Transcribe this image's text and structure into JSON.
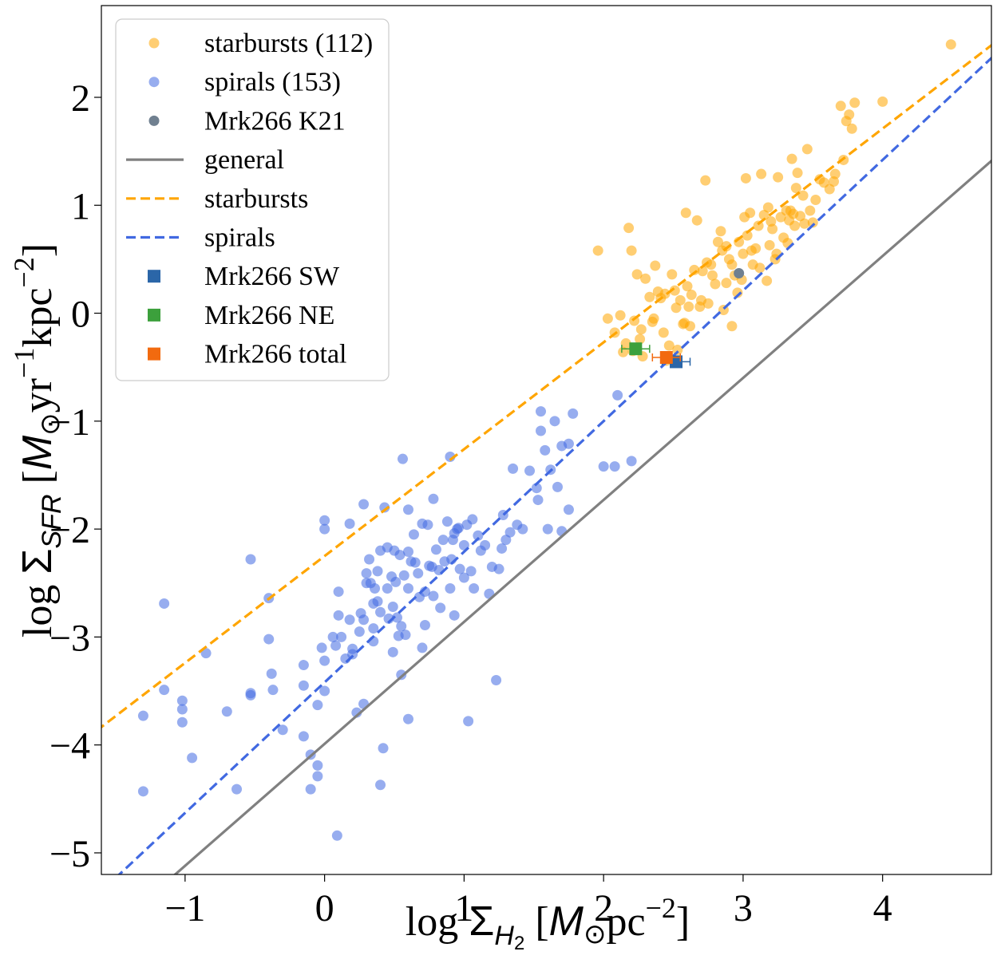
{
  "chart_data": {
    "type": "scatter",
    "xlim": [
      -1.6,
      4.78
    ],
    "ylim": [
      -5.2,
      2.85
    ],
    "xticks": [
      -1,
      0,
      1,
      2,
      3,
      4
    ],
    "yticks": [
      -5,
      -4,
      -3,
      -2,
      -1,
      0,
      1,
      2
    ],
    "xtick_labels": [
      "−1",
      "0",
      "1",
      "2",
      "3",
      "4"
    ],
    "ytick_labels": [
      "−5",
      "−4",
      "−3",
      "−2",
      "−1",
      "0",
      "1",
      "2"
    ],
    "xlabel": {
      "prefix": "log ",
      "sigma": "Σ",
      "sub": "H",
      "subsub": "2",
      "unit_open": " [",
      "msun": "M",
      "odot": "⊙",
      "unit": "pc",
      "exp": "−2",
      "close": "]"
    },
    "ylabel": {
      "prefix": "log ",
      "sigma": "Σ",
      "sub": "SFR",
      "unit_open": " [",
      "msun": "M",
      "odot": "⊙",
      "unit1": "yr",
      "exp1": "−1",
      "unit2": "kpc",
      "exp2": "−2",
      "close": "]"
    },
    "grid": false,
    "legend_position": "upper-left",
    "colors": {
      "starbursts": "#FFA500",
      "spirals": "#4169E1",
      "k21": "#708090",
      "general": "#808080",
      "sw": "#2B66A8",
      "ne": "#3CA03C",
      "total": "#F26A0F"
    },
    "legend": [
      {
        "label": "starbursts (112)",
        "kind": "dot",
        "color": "#FFA500"
      },
      {
        "label": "spirals (153)",
        "kind": "dot",
        "color": "#4169E1"
      },
      {
        "label": "Mrk266 K21",
        "kind": "dot",
        "color": "#708090"
      },
      {
        "label": "general",
        "kind": "solid",
        "color": "#808080"
      },
      {
        "label": "starbursts",
        "kind": "dash",
        "color": "#FFA500"
      },
      {
        "label": "spirals",
        "kind": "dash",
        "color": "#4169E1"
      },
      {
        "label": "Mrk266 SW",
        "kind": "square",
        "color": "#2B66A8"
      },
      {
        "label": "Mrk266 NE",
        "kind": "square",
        "color": "#3CA03C"
      },
      {
        "label": "Mrk266 total",
        "kind": "square",
        "color": "#F26A0F"
      }
    ],
    "fits": [
      {
        "name": "general",
        "style": "solid",
        "color": "#808080",
        "slope": 1.13,
        "intercept": -3.99
      },
      {
        "name": "starbursts",
        "style": "dash",
        "color": "#FFA500",
        "slope": 0.99,
        "intercept": -2.25
      },
      {
        "name": "spirals",
        "style": "dash",
        "color": "#4169E1",
        "slope": 1.21,
        "intercept": -3.42
      }
    ],
    "series": [
      {
        "name": "starbursts (112)",
        "color": "#FFA500",
        "points": [
          [
            1.96,
            0.58
          ],
          [
            2.03,
            -0.05
          ],
          [
            2.08,
            -0.18
          ],
          [
            2.14,
            -0.36
          ],
          [
            2.18,
            0.79
          ],
          [
            2.2,
            0.58
          ],
          [
            2.22,
            -0.07
          ],
          [
            2.24,
            0.36
          ],
          [
            2.26,
            -0.24
          ],
          [
            2.28,
            -0.4
          ],
          [
            2.3,
            0.32
          ],
          [
            2.33,
            0.15
          ],
          [
            2.35,
            -0.08
          ],
          [
            2.37,
            0.44
          ],
          [
            2.39,
            0.2
          ],
          [
            2.41,
            0.14
          ],
          [
            2.43,
            -0.18
          ],
          [
            2.45,
            -0.44
          ],
          [
            2.47,
            -0.3
          ],
          [
            2.49,
            0.36
          ],
          [
            2.51,
            0.21
          ],
          [
            2.53,
            -0.34
          ],
          [
            2.55,
            0.12
          ],
          [
            2.57,
            -0.1
          ],
          [
            2.59,
            0.93
          ],
          [
            2.61,
            0.06
          ],
          [
            2.63,
            0.17
          ],
          [
            2.65,
            0.4
          ],
          [
            2.67,
            0.86
          ],
          [
            2.69,
            0.06
          ],
          [
            2.71,
            0.39
          ],
          [
            2.73,
            1.23
          ],
          [
            2.75,
            0.09
          ],
          [
            2.77,
            0.45
          ],
          [
            2.8,
            0.27
          ],
          [
            2.82,
            0.66
          ],
          [
            2.84,
            0.76
          ],
          [
            2.86,
            0.03
          ],
          [
            2.88,
            0.62
          ],
          [
            2.9,
            0.5
          ],
          [
            2.92,
            -0.12
          ],
          [
            2.94,
            0.35
          ],
          [
            2.96,
            0.19
          ],
          [
            2.97,
            0.66
          ],
          [
            2.99,
            0.31
          ],
          [
            3.01,
            0.89
          ],
          [
            3.03,
            0.72
          ],
          [
            3.05,
            0.93
          ],
          [
            3.07,
            0.45
          ],
          [
            3.09,
            0.6
          ],
          [
            3.11,
            0.81
          ],
          [
            3.13,
            1.29
          ],
          [
            3.15,
            0.91
          ],
          [
            3.17,
            0.3
          ],
          [
            3.19,
            0.63
          ],
          [
            3.21,
            0.78
          ],
          [
            3.23,
            0.5
          ],
          [
            3.25,
            1.26
          ],
          [
            3.27,
            0.89
          ],
          [
            3.29,
            0.7
          ],
          [
            3.31,
            0.95
          ],
          [
            3.33,
            0.86
          ],
          [
            3.35,
            1.43
          ],
          [
            3.37,
            0.81
          ],
          [
            3.39,
            1.3
          ],
          [
            3.41,
            0.9
          ],
          [
            3.43,
            1.09
          ],
          [
            3.46,
            1.52
          ],
          [
            3.48,
            0.95
          ],
          [
            3.5,
            0.84
          ],
          [
            3.58,
            1.21
          ],
          [
            3.66,
            1.29
          ],
          [
            3.7,
            1.92
          ],
          [
            3.74,
            1.78
          ],
          [
            3.78,
            1.71
          ],
          [
            3.8,
            1.95
          ],
          [
            3.72,
            1.42
          ],
          [
            3.65,
            1.22
          ],
          [
            3.76,
            1.84
          ],
          [
            4.0,
            1.96
          ],
          [
            4.49,
            2.49
          ],
          [
            3.02,
            1.25
          ],
          [
            2.62,
            -0.12
          ],
          [
            2.78,
            0.35
          ],
          [
            2.58,
            -0.09
          ],
          [
            2.74,
            0.47
          ],
          [
            3.18,
            0.98
          ],
          [
            3.38,
            1.16
          ],
          [
            3.55,
            1.24
          ],
          [
            3.44,
            0.83
          ],
          [
            3.32,
            0.65
          ],
          [
            3.06,
            0.58
          ],
          [
            2.92,
            0.45
          ],
          [
            2.85,
            0.58
          ],
          [
            2.52,
            0.05
          ],
          [
            2.44,
            0.18
          ],
          [
            2.36,
            -0.05
          ],
          [
            2.27,
            -0.15
          ],
          [
            2.21,
            -0.35
          ],
          [
            2.16,
            -0.28
          ],
          [
            2.12,
            -0.02
          ],
          [
            2.6,
            0.25
          ],
          [
            2.7,
            0.12
          ],
          [
            2.88,
            0.28
          ],
          [
            3.0,
            0.55
          ],
          [
            3.12,
            0.42
          ],
          [
            3.24,
            0.55
          ],
          [
            3.36,
            0.92
          ],
          [
            3.52,
            1.05
          ],
          [
            3.62,
            1.15
          ],
          [
            3.34,
            0.95
          ],
          [
            3.2,
            0.85
          ]
        ]
      },
      {
        "name": "spirals (153)",
        "color": "#4169E1",
        "points": [
          [
            -1.3,
            -4.43
          ],
          [
            -1.3,
            -3.73
          ],
          [
            -1.15,
            -2.69
          ],
          [
            -1.15,
            -3.49
          ],
          [
            -1.02,
            -3.59
          ],
          [
            -1.02,
            -3.67
          ],
          [
            -1.02,
            -3.79
          ],
          [
            -0.95,
            -4.12
          ],
          [
            -0.85,
            -3.15
          ],
          [
            -0.7,
            -3.69
          ],
          [
            -0.63,
            -4.41
          ],
          [
            -0.53,
            -2.28
          ],
          [
            -0.53,
            -3.52
          ],
          [
            -0.53,
            -3.54
          ],
          [
            -0.4,
            -2.64
          ],
          [
            -0.4,
            -3.02
          ],
          [
            -0.38,
            -3.34
          ],
          [
            -0.37,
            -3.49
          ],
          [
            -0.3,
            -3.86
          ],
          [
            -0.15,
            -3.26
          ],
          [
            -0.15,
            -3.45
          ],
          [
            -0.15,
            -3.92
          ],
          [
            -0.1,
            -4.09
          ],
          [
            -0.1,
            -4.41
          ],
          [
            -0.05,
            -4.19
          ],
          [
            -0.05,
            -4.29
          ],
          [
            -0.05,
            -3.63
          ],
          [
            -0.02,
            -3.1
          ],
          [
            0.0,
            -1.92
          ],
          [
            0.0,
            -2.0
          ],
          [
            0.0,
            -3.22
          ],
          [
            0.0,
            -3.5
          ],
          [
            0.06,
            -3.0
          ],
          [
            0.08,
            -3.08
          ],
          [
            0.09,
            -4.84
          ],
          [
            0.1,
            -2.58
          ],
          [
            0.1,
            -2.8
          ],
          [
            0.12,
            -3.0
          ],
          [
            0.18,
            -1.95
          ],
          [
            0.18,
            -2.84
          ],
          [
            0.2,
            -3.11
          ],
          [
            0.2,
            -3.16
          ],
          [
            0.23,
            -3.7
          ],
          [
            0.26,
            -2.78
          ],
          [
            0.28,
            -2.84
          ],
          [
            0.28,
            -3.62
          ],
          [
            0.28,
            -1.77
          ],
          [
            0.3,
            -2.41
          ],
          [
            0.32,
            -2.28
          ],
          [
            0.33,
            -2.5
          ],
          [
            0.35,
            -2.69
          ],
          [
            0.35,
            -2.92
          ],
          [
            0.35,
            -3.04
          ],
          [
            0.36,
            -2.55
          ],
          [
            0.38,
            -2.39
          ],
          [
            0.38,
            -2.67
          ],
          [
            0.4,
            -2.2
          ],
          [
            0.4,
            -2.77
          ],
          [
            0.4,
            -4.37
          ],
          [
            0.42,
            -4.03
          ],
          [
            0.43,
            -1.8
          ],
          [
            0.45,
            -2.17
          ],
          [
            0.45,
            -2.55
          ],
          [
            0.46,
            -2.83
          ],
          [
            0.48,
            -2.44
          ],
          [
            0.49,
            -2.72
          ],
          [
            0.49,
            -3.14
          ],
          [
            0.5,
            -2.2
          ],
          [
            0.51,
            -2.49
          ],
          [
            0.52,
            -2.82
          ],
          [
            0.53,
            -2.99
          ],
          [
            0.54,
            -2.24
          ],
          [
            0.55,
            -3.35
          ],
          [
            0.56,
            -1.35
          ],
          [
            0.57,
            -2.43
          ],
          [
            0.58,
            -2.98
          ],
          [
            0.6,
            -1.82
          ],
          [
            0.6,
            -2.21
          ],
          [
            0.6,
            -3.76
          ],
          [
            0.62,
            -2.3
          ],
          [
            0.64,
            -2.05
          ],
          [
            0.65,
            -2.31
          ],
          [
            0.67,
            -2.41
          ],
          [
            0.68,
            -2.63
          ],
          [
            0.7,
            -3.1
          ],
          [
            0.7,
            -1.95
          ],
          [
            0.72,
            -2.58
          ],
          [
            0.74,
            -1.96
          ],
          [
            0.75,
            -2.34
          ],
          [
            0.77,
            -2.35
          ],
          [
            0.78,
            -1.72
          ],
          [
            0.78,
            -2.62
          ],
          [
            0.8,
            -2.19
          ],
          [
            0.82,
            -2.38
          ],
          [
            0.83,
            -2.73
          ],
          [
            0.85,
            -2.1
          ],
          [
            0.86,
            -2.3
          ],
          [
            0.88,
            -1.93
          ],
          [
            0.9,
            -1.33
          ],
          [
            0.9,
            -2.55
          ],
          [
            0.91,
            -2.28
          ],
          [
            0.93,
            -2.8
          ],
          [
            0.93,
            -2.04
          ],
          [
            0.95,
            -2.0
          ],
          [
            0.97,
            -2.37
          ],
          [
            1.0,
            -2.15
          ],
          [
            1.0,
            -2.45
          ],
          [
            1.02,
            -1.96
          ],
          [
            1.03,
            -3.78
          ],
          [
            1.05,
            -2.39
          ],
          [
            1.06,
            -1.91
          ],
          [
            1.07,
            -2.55
          ],
          [
            1.1,
            -2.06
          ],
          [
            1.12,
            -2.2
          ],
          [
            1.15,
            -2.15
          ],
          [
            1.18,
            -2.6
          ],
          [
            1.2,
            -2.35
          ],
          [
            1.23,
            -3.4
          ],
          [
            1.25,
            -2.37
          ],
          [
            1.27,
            -2.18
          ],
          [
            1.28,
            -1.87
          ],
          [
            1.3,
            -2.1
          ],
          [
            1.33,
            -2.03
          ],
          [
            1.35,
            -1.44
          ],
          [
            1.38,
            -1.96
          ],
          [
            1.47,
            -1.46
          ],
          [
            1.52,
            -1.62
          ],
          [
            1.53,
            -1.73
          ],
          [
            1.55,
            -0.91
          ],
          [
            1.55,
            -1.09
          ],
          [
            1.58,
            -1.27
          ],
          [
            1.6,
            -2.0
          ],
          [
            1.62,
            -1.45
          ],
          [
            1.65,
            -1.0
          ],
          [
            1.67,
            -1.61
          ],
          [
            1.7,
            -2.02
          ],
          [
            1.7,
            -1.23
          ],
          [
            1.75,
            -1.82
          ],
          [
            1.75,
            -1.21
          ],
          [
            1.78,
            -0.93
          ],
          [
            2.0,
            -1.42
          ],
          [
            2.08,
            -1.42
          ],
          [
            2.1,
            -0.76
          ],
          [
            2.2,
            -1.37
          ],
          [
            0.92,
            -2.1
          ],
          [
            0.96,
            -1.99
          ],
          [
            1.42,
            -2.0
          ],
          [
            0.15,
            -3.2
          ],
          [
            0.72,
            -2.89
          ],
          [
            0.55,
            -2.9
          ],
          [
            0.3,
            -2.5
          ],
          [
            0.25,
            -2.95
          ],
          [
            0.6,
            -2.55
          ]
        ]
      }
    ],
    "k21_point": [
      2.97,
      0.37
    ],
    "mrk266": [
      {
        "name": "Mrk266 SW",
        "x": 2.52,
        "y": -0.45,
        "xerr": 0.1,
        "color": "#2B66A8"
      },
      {
        "name": "Mrk266 NE",
        "x": 2.23,
        "y": -0.33,
        "xerr": 0.1,
        "color": "#3CA03C"
      },
      {
        "name": "Mrk266 total",
        "x": 2.45,
        "y": -0.41,
        "xerr": 0.1,
        "color": "#F26A0F"
      }
    ]
  }
}
